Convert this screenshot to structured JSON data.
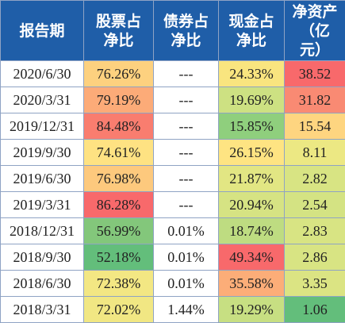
{
  "header": {
    "period": "报告期",
    "stock_line1": "股票占",
    "stock_line2": "净比",
    "bond_line1": "债券占",
    "bond_line2": "净比",
    "cash_line1": "现金占",
    "cash_line2": "净比",
    "nav_line1": "净资产",
    "nav_line2": "（亿",
    "nav_line3": "元）"
  },
  "colors": {
    "header_bg": "#1f5ea8",
    "header_text": "#ffffff",
    "grid_border": "#8fa3c4"
  },
  "rows": [
    {
      "period": "2020/6/30",
      "stock": {
        "text": "76.26%",
        "bg": "#fdd17f"
      },
      "bond": {
        "text": "---",
        "bg": "#ffffff"
      },
      "cash": {
        "text": "24.33%",
        "bg": "#f9e57f"
      },
      "nav": {
        "text": "38.52",
        "bg": "#f8696b"
      }
    },
    {
      "period": "2020/3/31",
      "stock": {
        "text": "79.19%",
        "bg": "#fcab78"
      },
      "bond": {
        "text": "---",
        "bg": "#ffffff"
      },
      "cash": {
        "text": "19.69%",
        "bg": "#cde182"
      },
      "nav": {
        "text": "31.82",
        "bg": "#f98a73"
      }
    },
    {
      "period": "2019/12/31",
      "stock": {
        "text": "84.48%",
        "bg": "#f97d6f"
      },
      "bond": {
        "text": "---",
        "bg": "#ffffff"
      },
      "cash": {
        "text": "15.85%",
        "bg": "#8fcf7d"
      },
      "nav": {
        "text": "15.54",
        "bg": "#fed580"
      }
    },
    {
      "period": "2019/9/30",
      "stock": {
        "text": "74.61%",
        "bg": "#fee282"
      },
      "bond": {
        "text": "---",
        "bg": "#ffffff"
      },
      "cash": {
        "text": "26.15%",
        "bg": "#fee482"
      },
      "nav": {
        "text": "8.11",
        "bg": "#ece883"
      }
    },
    {
      "period": "2019/6/30",
      "stock": {
        "text": "76.98%",
        "bg": "#fdc97d"
      },
      "bond": {
        "text": "---",
        "bg": "#ffffff"
      },
      "cash": {
        "text": "21.87%",
        "bg": "#e2e683"
      },
      "nav": {
        "text": "2.82",
        "bg": "#d8e483"
      }
    },
    {
      "period": "2019/3/31",
      "stock": {
        "text": "86.28%",
        "bg": "#f8696b"
      },
      "bond": {
        "text": "---",
        "bg": "#ffffff"
      },
      "cash": {
        "text": "20.94%",
        "bg": "#d6e383"
      },
      "nav": {
        "text": "2.54",
        "bg": "#d4e383"
      }
    },
    {
      "period": "2018/12/31",
      "stock": {
        "text": "56.99%",
        "bg": "#83c77b"
      },
      "bond": {
        "text": "0.01%",
        "bg": "#ffffff"
      },
      "cash": {
        "text": "18.74%",
        "bg": "#bedc81"
      },
      "nav": {
        "text": "2.83",
        "bg": "#d8e483"
      }
    },
    {
      "period": "2018/9/30",
      "stock": {
        "text": "52.18%",
        "bg": "#63be7b"
      },
      "bond": {
        "text": "0.01%",
        "bg": "#ffffff"
      },
      "cash": {
        "text": "49.34%",
        "bg": "#f8696b"
      },
      "nav": {
        "text": "2.86",
        "bg": "#d8e483"
      }
    },
    {
      "period": "2018/6/30",
      "stock": {
        "text": "72.38%",
        "bg": "#f3e783"
      },
      "bond": {
        "text": "0.01%",
        "bg": "#ffffff"
      },
      "cash": {
        "text": "35.58%",
        "bg": "#fcad78"
      },
      "nav": {
        "text": "3.35",
        "bg": "#dbe483"
      }
    },
    {
      "period": "2018/3/31",
      "stock": {
        "text": "72.02%",
        "bg": "#f1e783"
      },
      "bond": {
        "text": "1.44%",
        "bg": "#ffffff"
      },
      "cash": {
        "text": "19.29%",
        "bg": "#c7df82"
      },
      "nav": {
        "text": "1.06",
        "bg": "#63be7b"
      }
    }
  ]
}
